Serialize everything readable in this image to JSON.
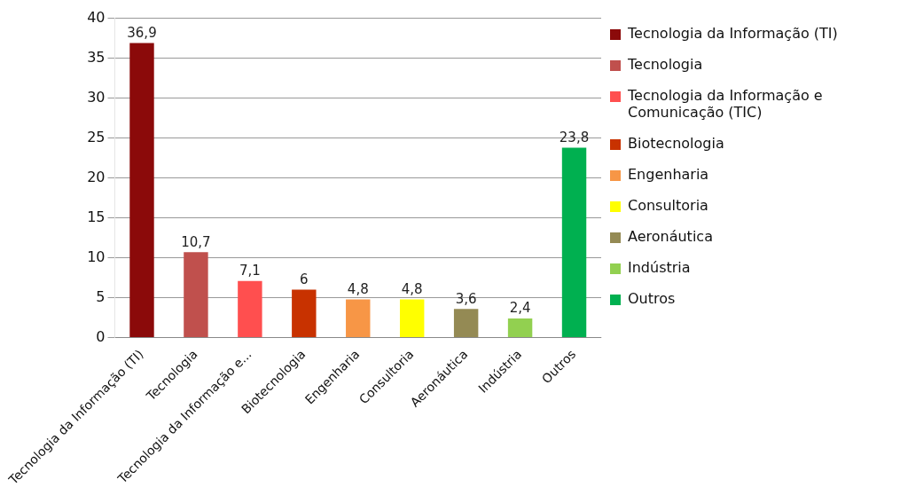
{
  "chart_data": {
    "type": "bar",
    "stacked": true,
    "categories": [
      "Tecnologia da Informação (TI)",
      "Tecnologia",
      "Tecnologia da Informação e...",
      "Biotecnologia",
      "Engenharia",
      "Consultoria",
      "Aeronáutica",
      "Indústria",
      "Outros"
    ],
    "series": [
      {
        "name": "Tecnologia da Informação (TI)",
        "color": "#8b0a0a",
        "values": [
          36.9,
          null,
          null,
          null,
          null,
          null,
          null,
          null,
          null
        ],
        "value_labels": [
          "36,9",
          null,
          null,
          null,
          null,
          null,
          null,
          null,
          null
        ]
      },
      {
        "name": "Tecnologia",
        "color": "#c0504d",
        "values": [
          null,
          10.7,
          null,
          null,
          null,
          null,
          null,
          null,
          null
        ],
        "value_labels": [
          null,
          "10,7",
          null,
          null,
          null,
          null,
          null,
          null,
          null
        ]
      },
      {
        "name": "Tecnologia da Informação e Comunicação (TIC)",
        "color": "#ff4f4f",
        "values": [
          null,
          null,
          7.1,
          null,
          null,
          null,
          null,
          null,
          null
        ],
        "value_labels": [
          null,
          null,
          "7,1",
          null,
          null,
          null,
          null,
          null,
          null
        ]
      },
      {
        "name": "Biotecnologia",
        "color": "#c83200",
        "values": [
          null,
          null,
          null,
          6,
          null,
          null,
          null,
          null,
          null
        ],
        "value_labels": [
          null,
          null,
          null,
          "6",
          null,
          null,
          null,
          null,
          null
        ]
      },
      {
        "name": "Engenharia",
        "color": "#f79646",
        "values": [
          null,
          null,
          null,
          null,
          4.8,
          null,
          null,
          null,
          null
        ],
        "value_labels": [
          null,
          null,
          null,
          null,
          "4,8",
          null,
          null,
          null,
          null
        ]
      },
      {
        "name": "Consultoria",
        "color": "#ffff00",
        "values": [
          null,
          null,
          null,
          null,
          null,
          4.8,
          null,
          null,
          null
        ],
        "value_labels": [
          null,
          null,
          null,
          null,
          null,
          "4,8",
          null,
          null,
          null
        ]
      },
      {
        "name": "Aeronáutica",
        "color": "#948a54",
        "values": [
          null,
          null,
          null,
          null,
          null,
          null,
          3.6,
          null,
          null
        ],
        "value_labels": [
          null,
          null,
          null,
          null,
          null,
          null,
          "3,6",
          null,
          null
        ]
      },
      {
        "name": "Indústria",
        "color": "#92d050",
        "values": [
          null,
          null,
          null,
          null,
          null,
          null,
          null,
          2.4,
          null
        ],
        "value_labels": [
          null,
          null,
          null,
          null,
          null,
          null,
          null,
          "2,4",
          null
        ]
      },
      {
        "name": "Outros",
        "color": "#00b050",
        "values": [
          null,
          null,
          null,
          null,
          null,
          null,
          null,
          null,
          23.8
        ],
        "value_labels": [
          null,
          null,
          null,
          null,
          null,
          null,
          null,
          null,
          "23,8"
        ]
      }
    ],
    "ylim": [
      0,
      40
    ],
    "yticks": [
      0,
      5,
      10,
      15,
      20,
      25,
      30,
      35,
      40
    ],
    "grid": "y",
    "legend": "right"
  }
}
